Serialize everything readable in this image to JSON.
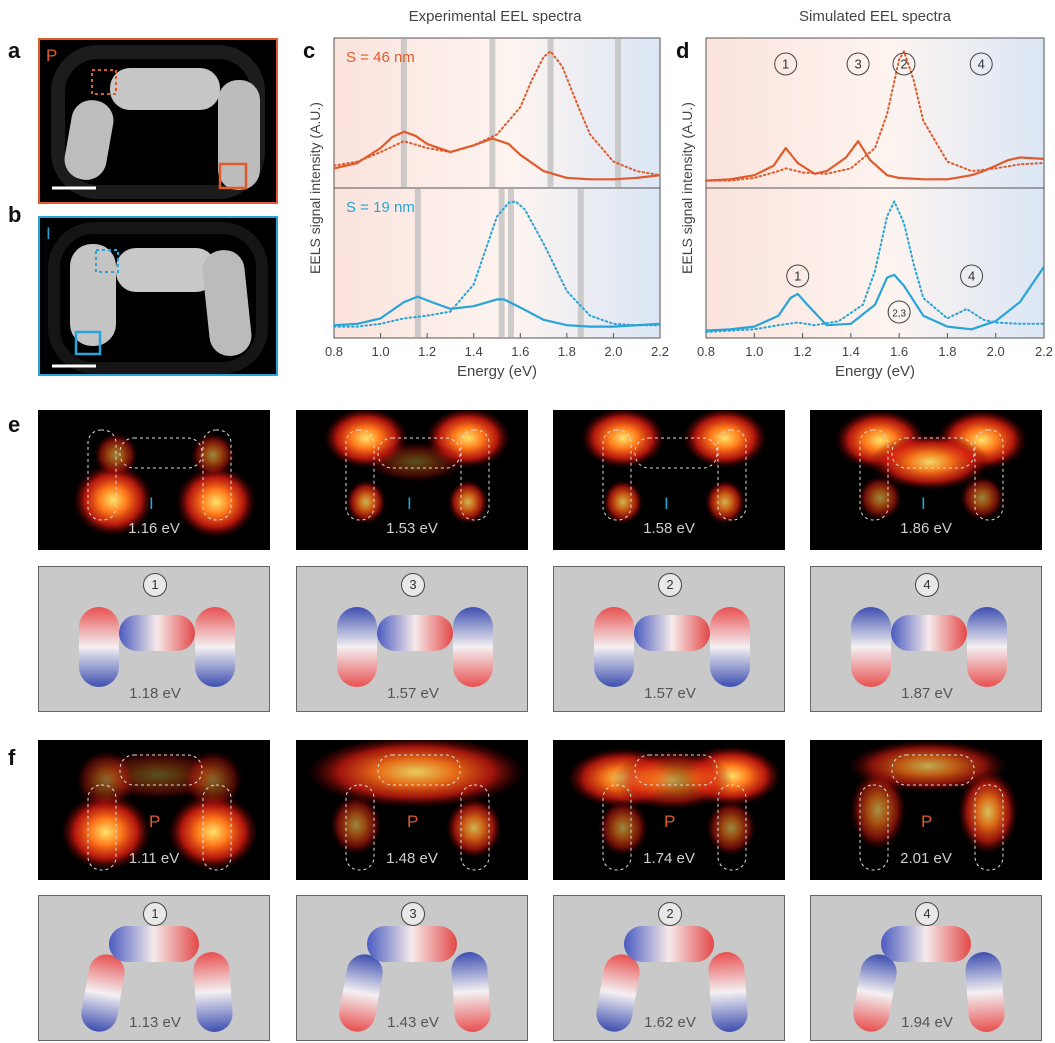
{
  "panel_labels": {
    "a": "a",
    "b": "b",
    "c": "c",
    "d": "d",
    "e": "e",
    "f": "f"
  },
  "thumbs": {
    "a_glyph": "P",
    "b_glyph": "I",
    "a_color": "#e05a2b",
    "b_color": "#27a4d8"
  },
  "chart_data": [
    {
      "type": "line",
      "title": "Experimental EEL spectra",
      "xlabel": "Energy (eV)",
      "ylabel": "EELS signal intensity (A.U.)",
      "xlim": [
        0.8,
        2.2
      ],
      "xticks": [
        "0.8",
        "1.0",
        "1.2",
        "1.4",
        "1.6",
        "1.8",
        "2.0",
        "2.2"
      ],
      "subplots": [
        {
          "annotation": "S = 46 nm",
          "color": "#e05a2b",
          "vlines": [
            1.1,
            1.48,
            1.73,
            2.02
          ],
          "series": [
            {
              "style": "solid",
              "x": [
                0.8,
                0.9,
                1.0,
                1.05,
                1.1,
                1.15,
                1.2,
                1.3,
                1.4,
                1.48,
                1.55,
                1.6,
                1.7,
                1.8,
                1.9,
                2.0,
                2.1,
                2.2
              ],
              "y": [
                0.1,
                0.14,
                0.25,
                0.33,
                0.37,
                0.34,
                0.28,
                0.22,
                0.27,
                0.32,
                0.28,
                0.2,
                0.08,
                0.03,
                0.02,
                0.02,
                0.03,
                0.05
              ]
            },
            {
              "style": "dotted",
              "x": [
                0.8,
                0.9,
                1.0,
                1.1,
                1.2,
                1.3,
                1.4,
                1.5,
                1.6,
                1.65,
                1.7,
                1.73,
                1.78,
                1.85,
                1.9,
                2.0,
                2.1,
                2.2
              ],
              "y": [
                0.12,
                0.15,
                0.22,
                0.3,
                0.25,
                0.22,
                0.27,
                0.35,
                0.55,
                0.75,
                0.92,
                0.96,
                0.85,
                0.55,
                0.35,
                0.15,
                0.08,
                0.05
              ]
            }
          ]
        },
        {
          "annotation": "S = 19 nm",
          "color": "#27a4d8",
          "vlines": [
            1.16,
            1.52,
            1.56,
            1.86
          ],
          "series": [
            {
              "style": "solid",
              "x": [
                0.8,
                0.9,
                1.0,
                1.1,
                1.16,
                1.22,
                1.3,
                1.4,
                1.5,
                1.53,
                1.6,
                1.7,
                1.8,
                1.9,
                2.0,
                2.1,
                2.2
              ],
              "y": [
                0.05,
                0.06,
                0.1,
                0.22,
                0.26,
                0.22,
                0.17,
                0.19,
                0.24,
                0.24,
                0.18,
                0.09,
                0.05,
                0.04,
                0.04,
                0.05,
                0.06
              ]
            },
            {
              "style": "dotted",
              "x": [
                0.8,
                0.9,
                1.0,
                1.1,
                1.2,
                1.3,
                1.4,
                1.45,
                1.5,
                1.55,
                1.58,
                1.62,
                1.7,
                1.8,
                1.9,
                2.0,
                2.1,
                2.2
              ],
              "y": [
                0.04,
                0.04,
                0.06,
                0.1,
                0.12,
                0.15,
                0.35,
                0.6,
                0.85,
                0.95,
                0.96,
                0.9,
                0.65,
                0.3,
                0.12,
                0.06,
                0.05,
                0.05
              ]
            }
          ]
        }
      ]
    },
    {
      "type": "line",
      "title": "Simulated EEL spectra",
      "xlabel": "Energy (eV)",
      "ylabel": "EELS signal intensity (A.U.)",
      "xlim": [
        0.8,
        2.2
      ],
      "xticks": [
        "0.8",
        "1.0",
        "1.2",
        "1.4",
        "1.6",
        "1.8",
        "2.0",
        "2.2"
      ],
      "subplots": [
        {
          "color": "#e05a2b",
          "marks": [
            {
              "label": "1",
              "x": 1.13
            },
            {
              "label": "3",
              "x": 1.43
            },
            {
              "label": "2",
              "x": 1.62
            },
            {
              "label": "4",
              "x": 1.94
            }
          ],
          "series": [
            {
              "style": "solid",
              "x": [
                0.8,
                0.9,
                1.0,
                1.08,
                1.13,
                1.18,
                1.25,
                1.3,
                1.38,
                1.43,
                1.48,
                1.55,
                1.6,
                1.7,
                1.8,
                1.9,
                1.95,
                2.0,
                2.05,
                2.1,
                2.2
              ],
              "y": [
                0.01,
                0.02,
                0.05,
                0.12,
                0.25,
                0.14,
                0.06,
                0.08,
                0.18,
                0.3,
                0.16,
                0.05,
                0.03,
                0.02,
                0.02,
                0.05,
                0.08,
                0.12,
                0.16,
                0.18,
                0.17
              ]
            },
            {
              "style": "dotted",
              "x": [
                0.8,
                0.9,
                1.0,
                1.1,
                1.13,
                1.2,
                1.3,
                1.4,
                1.5,
                1.55,
                1.6,
                1.62,
                1.66,
                1.7,
                1.8,
                1.9,
                2.0,
                2.1,
                2.2
              ],
              "y": [
                0.01,
                0.01,
                0.03,
                0.08,
                0.1,
                0.07,
                0.06,
                0.1,
                0.25,
                0.5,
                0.9,
                0.96,
                0.75,
                0.45,
                0.15,
                0.08,
                0.1,
                0.13,
                0.14
              ]
            }
          ]
        },
        {
          "color": "#27a4d8",
          "marks": [
            {
              "label": "1",
              "x": 1.18
            },
            {
              "label": "2,3",
              "x": 1.6
            },
            {
              "label": "4",
              "x": 1.9
            }
          ],
          "series": [
            {
              "style": "solid",
              "x": [
                0.8,
                0.9,
                1.0,
                1.1,
                1.15,
                1.18,
                1.22,
                1.3,
                1.4,
                1.5,
                1.55,
                1.58,
                1.62,
                1.7,
                1.8,
                1.9,
                2.0,
                2.1,
                2.2
              ],
              "y": [
                0.01,
                0.02,
                0.04,
                0.12,
                0.25,
                0.28,
                0.2,
                0.05,
                0.06,
                0.2,
                0.4,
                0.42,
                0.34,
                0.12,
                0.04,
                0.02,
                0.08,
                0.22,
                0.48
              ]
            },
            {
              "style": "dotted",
              "x": [
                0.8,
                0.9,
                1.0,
                1.1,
                1.18,
                1.25,
                1.35,
                1.45,
                1.5,
                1.55,
                1.58,
                1.62,
                1.66,
                1.7,
                1.8,
                1.88,
                1.95,
                2.0,
                2.1,
                2.2
              ],
              "y": [
                0.0,
                0.01,
                0.02,
                0.05,
                0.07,
                0.05,
                0.08,
                0.2,
                0.45,
                0.85,
                0.96,
                0.8,
                0.5,
                0.25,
                0.1,
                0.17,
                0.09,
                0.07,
                0.06,
                0.06
              ]
            }
          ]
        }
      ]
    }
  ],
  "row_e": {
    "glyph": "I",
    "maps": [
      {
        "energy": "1.16 eV"
      },
      {
        "energy": "1.53 eV"
      },
      {
        "energy": "1.58 eV"
      },
      {
        "energy": "1.86 eV"
      }
    ],
    "sims": [
      {
        "mark": "1",
        "energy": "1.18 eV"
      },
      {
        "mark": "3",
        "energy": "1.57 eV"
      },
      {
        "mark": "2",
        "energy": "1.57 eV"
      },
      {
        "mark": "4",
        "energy": "1.87 eV"
      }
    ]
  },
  "row_f": {
    "glyph": "P",
    "maps": [
      {
        "energy": "1.11 eV"
      },
      {
        "energy": "1.48 eV"
      },
      {
        "energy": "1.74 eV"
      },
      {
        "energy": "2.01 eV"
      }
    ],
    "sims": [
      {
        "mark": "1",
        "energy": "1.13 eV"
      },
      {
        "mark": "3",
        "energy": "1.43 eV"
      },
      {
        "mark": "2",
        "energy": "1.62 eV"
      },
      {
        "mark": "4",
        "energy": "1.94 eV"
      }
    ]
  }
}
